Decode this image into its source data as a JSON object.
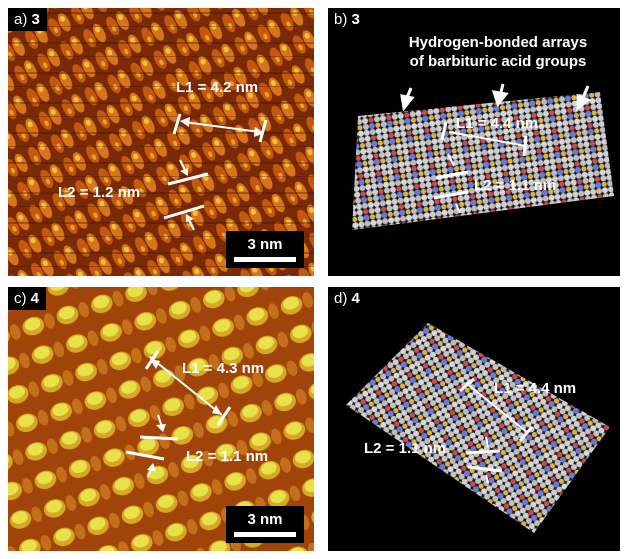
{
  "panels": {
    "a": {
      "letter": "a)",
      "compound": "3",
      "l1": "L1 = 4.2 nm",
      "l2": "L2 = 1.2 nm",
      "scale": "3 nm"
    },
    "b": {
      "letter": "b)",
      "compound": "3",
      "title_line1": "Hydrogen-bonded arrays",
      "title_line2": "of barbituric acid groups",
      "l1": "L1 = 4.4 nm",
      "l2": "L2 = 1.1 nm"
    },
    "c": {
      "letter": "c)",
      "compound": "4",
      "l1": "L1 = 4.3 nm",
      "l2": "L2 = 1.1 nm",
      "scale": "3 nm"
    },
    "d": {
      "letter": "d)",
      "compound": "4",
      "l1": "L1 = 4.4 nm",
      "l2": "L2 = 1.1 nm"
    }
  },
  "colors": {
    "stm_dark": "#6a2306",
    "stm_mid": "#c8600e",
    "stm_bright": "#f2c23a",
    "stm_c_bright": "#e8e24a",
    "model_atom": "#c8c8c8",
    "model_oxygen": "#d24a4a",
    "model_nitrogen": "#6a7ad8",
    "model_sulfur": "#e0b040"
  }
}
